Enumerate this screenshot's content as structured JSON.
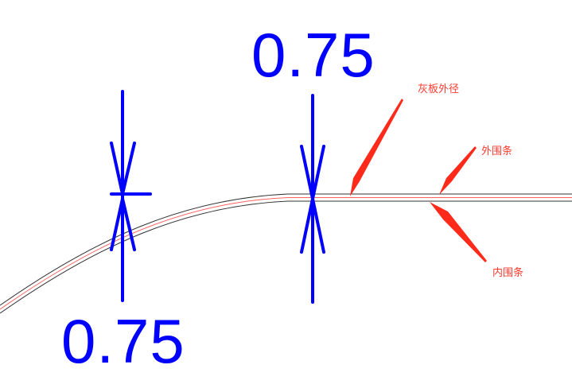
{
  "dimensions": [
    {
      "label": "0.75"
    },
    {
      "label": "0.75"
    }
  ],
  "callouts": [
    {
      "label": "灰板外径"
    },
    {
      "label": "外围条"
    },
    {
      "label": "内围条"
    }
  ],
  "colors": {
    "dimension": "#0000ff",
    "callout": "#ff2a1a",
    "outer_line": "#333333",
    "center_line": "#ff6060"
  }
}
